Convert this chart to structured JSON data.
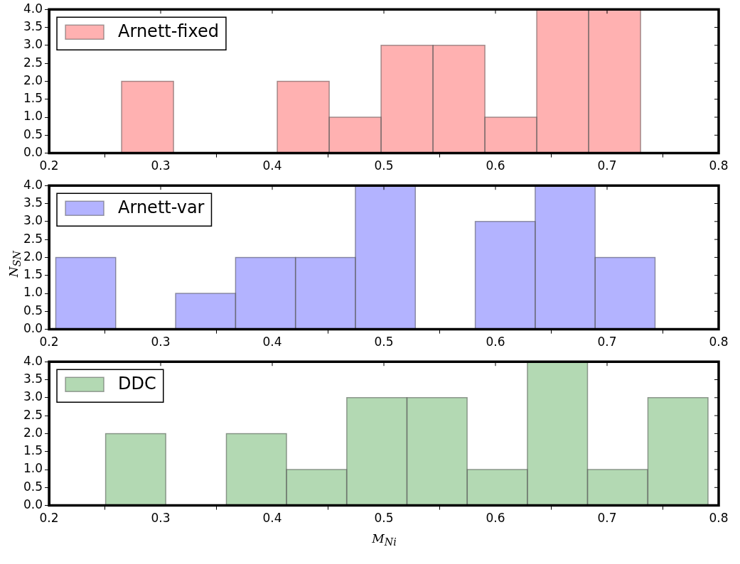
{
  "chart_data": [
    {
      "type": "histogram",
      "bins": [
        0.265,
        0.3115,
        0.358,
        0.4045,
        0.451,
        0.4975,
        0.544,
        0.5905,
        0.637,
        0.6835,
        0.73
      ],
      "series": [
        {
          "name": "Arnett-fixed",
          "color": "#ffb1b1",
          "values": [
            2,
            0,
            0,
            2,
            1,
            3,
            3,
            1,
            4,
            4
          ]
        }
      ],
      "xlim": [
        0.2,
        0.8
      ],
      "xticks": [
        0.2,
        0.3,
        0.4,
        0.5,
        0.6,
        0.7,
        0.8
      ],
      "ylim": [
        0,
        4
      ],
      "yticks": [
        {
          "value": 0,
          "label": "0.0"
        },
        {
          "value": 0.5,
          "label": "0.5"
        },
        {
          "value": 1,
          "label": "1.0"
        },
        {
          "value": 1.5,
          "label": "1.5"
        },
        {
          "value": 2,
          "label": "2.0"
        },
        {
          "value": 2.5,
          "label": "2.5"
        },
        {
          "value": 3,
          "label": "3.0"
        },
        {
          "value": 3.5,
          "label": "3.5"
        },
        {
          "value": 4,
          "label": "4.0"
        }
      ],
      "legend": "top left"
    },
    {
      "type": "histogram",
      "bins": [
        0.206,
        0.2597,
        0.3134,
        0.3671,
        0.4208,
        0.4745,
        0.5282,
        0.5819,
        0.6356,
        0.6893,
        0.743
      ],
      "series": [
        {
          "name": "Arnett-var",
          "color": "#b3b3ff",
          "values": [
            2,
            0,
            1,
            2,
            2,
            4,
            0,
            3,
            4,
            2
          ]
        }
      ],
      "xlim": [
        0.2,
        0.8
      ],
      "xticks": [
        0.2,
        0.3,
        0.4,
        0.5,
        0.6,
        0.7,
        0.8
      ],
      "ylim": [
        0,
        4
      ],
      "yticks": [
        {
          "value": 0,
          "label": "0.0"
        },
        {
          "value": 0.5,
          "label": "0.5"
        },
        {
          "value": 1,
          "label": "1.0"
        },
        {
          "value": 1.5,
          "label": "1.5"
        },
        {
          "value": 2,
          "label": "2.0"
        },
        {
          "value": 2.5,
          "label": "2.5"
        },
        {
          "value": 3,
          "label": "3.0"
        },
        {
          "value": 3.5,
          "label": "3.5"
        },
        {
          "value": 4,
          "label": "4.0"
        }
      ],
      "ylabel": "N$_{SN}$",
      "legend": "top left"
    },
    {
      "type": "histogram",
      "bins": [
        0.2505,
        0.3047,
        0.3589,
        0.4127,
        0.4667,
        0.5207,
        0.5746,
        0.6287,
        0.6824,
        0.7364,
        0.7906
      ],
      "series": [
        {
          "name": "DDC",
          "color": "#b3d9b3",
          "values": [
            2,
            0,
            2,
            1,
            3,
            3,
            1,
            4,
            1,
            3
          ]
        }
      ],
      "xlim": [
        0.2,
        0.8
      ],
      "xticks": [
        0.2,
        0.3,
        0.4,
        0.5,
        0.6,
        0.7,
        0.8
      ],
      "ylim": [
        0,
        4
      ],
      "yticks": [
        {
          "value": 0,
          "label": "0.0"
        },
        {
          "value": 0.5,
          "label": "0.5"
        },
        {
          "value": 1,
          "label": "1.0"
        },
        {
          "value": 1.5,
          "label": "1.5"
        },
        {
          "value": 2,
          "label": "2.0"
        },
        {
          "value": 2.5,
          "label": "2.5"
        },
        {
          "value": 3,
          "label": "3.0"
        },
        {
          "value": 3.5,
          "label": "3.5"
        },
        {
          "value": 4,
          "label": "4.0"
        }
      ],
      "xlabel": "M$_{Ni}$",
      "legend": "top left"
    }
  ]
}
